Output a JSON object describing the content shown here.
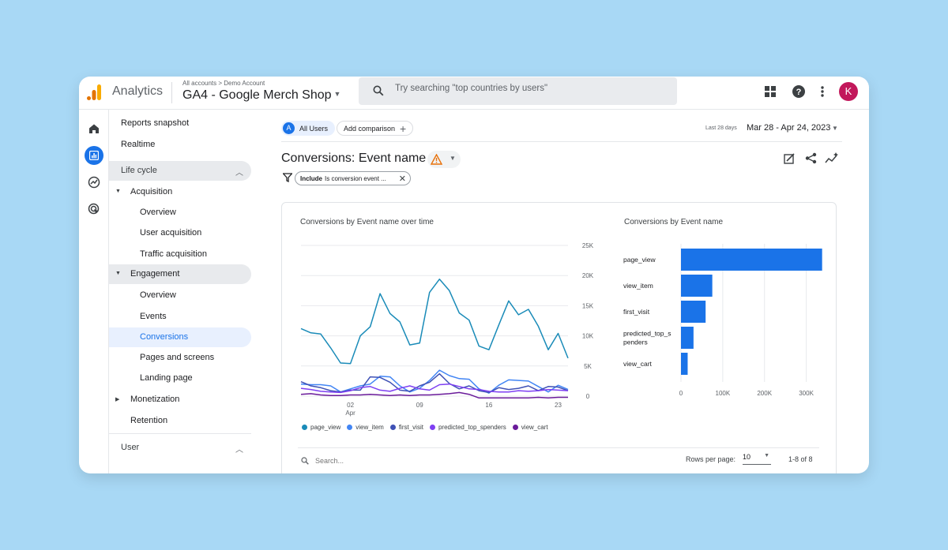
{
  "header": {
    "app_name": "Analytics",
    "breadcrumb": "All accounts > Demo Account",
    "property": "GA4 - Google Merch Shop",
    "search_placeholder": "Try searching \"top countries by users\"",
    "avatar_letter": "K",
    "brand_colors": {
      "logo_orange": "#f9ab00",
      "logo_dark": "#e37400",
      "avatar": "#c2185b"
    }
  },
  "nav": {
    "reports_snapshot": "Reports snapshot",
    "realtime": "Realtime",
    "lifecycle": "Life cycle",
    "acquisition": "Acquisition",
    "acq_overview": "Overview",
    "user_acquisition": "User acquisition",
    "traffic_acquisition": "Traffic acquisition",
    "engagement": "Engagement",
    "eng_overview": "Overview",
    "events": "Events",
    "conversions": "Conversions",
    "pages_screens": "Pages and screens",
    "landing_page": "Landing page",
    "monetization": "Monetization",
    "retention": "Retention",
    "user": "User"
  },
  "toolbar": {
    "segment_letter": "A",
    "segment": "All Users",
    "add_comparison": "Add comparison",
    "range_label": "Last 28 days",
    "range_value": "Mar 28 - Apr 24, 2023"
  },
  "page": {
    "title": "Conversions: Event name",
    "filter_bold": "Include",
    "filter_text": "Is conversion event ..."
  },
  "line_chart_title": "Conversions by Event name over time",
  "bar_chart_title": "Conversions by Event name",
  "table": {
    "search_placeholder": "Search...",
    "rows_label": "Rows per page:",
    "rows_value": "10",
    "page_info": "1-8 of 8"
  },
  "chart_data": [
    {
      "type": "line",
      "title": "Conversions by Event name over time",
      "x_ticks": [
        {
          "i": 5,
          "label": "02",
          "sub": "Apr"
        },
        {
          "i": 12,
          "label": "09"
        },
        {
          "i": 19,
          "label": "16"
        },
        {
          "i": 26,
          "label": "23"
        }
      ],
      "yticks": [
        "25K",
        "20K",
        "15K",
        "10K",
        "5K",
        "0"
      ],
      "ylim": [
        0,
        25000
      ],
      "series": [
        {
          "name": "page_view",
          "color": "#1a8bb8",
          "values": [
            11200,
            10500,
            10300,
            8000,
            5500,
            5400,
            10000,
            11500,
            17000,
            13700,
            12300,
            8500,
            8800,
            17200,
            19400,
            17500,
            13800,
            12600,
            8300,
            7700,
            11800,
            15800,
            13500,
            14400,
            11600,
            7700,
            10400,
            6300
          ]
        },
        {
          "name": "view_item",
          "color": "#4285f4",
          "values": [
            2000,
            1900,
            1900,
            1700,
            700,
            1200,
            1700,
            2000,
            3300,
            3200,
            1700,
            700,
            1300,
            2600,
            4300,
            3400,
            2900,
            2800,
            1200,
            500,
            1800,
            2700,
            2600,
            2500,
            1600,
            700,
            1800,
            1100
          ]
        },
        {
          "name": "first_visit",
          "color": "#3f51b5",
          "values": [
            2400,
            1700,
            1400,
            900,
            700,
            1000,
            1000,
            3200,
            3100,
            2300,
            1000,
            800,
            1700,
            2300,
            3700,
            2100,
            1200,
            1700,
            900,
            600,
            1400,
            1100,
            1300,
            1700,
            900,
            1600,
            1500,
            900
          ]
        },
        {
          "name": "predicted_top_spenders",
          "color": "#7e3ff2",
          "values": [
            1300,
            1100,
            800,
            700,
            600,
            900,
            1400,
            1600,
            1000,
            800,
            1300,
            1700,
            1200,
            1000,
            1900,
            2000,
            1600,
            1200,
            1100,
            800,
            700,
            700,
            900,
            800,
            900,
            1100,
            1000,
            900
          ]
        },
        {
          "name": "view_cart",
          "color": "#6a1b9a",
          "values": [
            300,
            400,
            200,
            100,
            100,
            200,
            200,
            300,
            200,
            100,
            200,
            100,
            200,
            200,
            300,
            400,
            600,
            300,
            -300,
            -300,
            -300,
            -300,
            -300,
            -300,
            -200,
            -300,
            -200,
            -200
          ]
        }
      ]
    },
    {
      "type": "bar",
      "orientation": "horizontal",
      "title": "Conversions by Event name",
      "categories": [
        "page_view",
        "view_item",
        "first_visit",
        "predicted_top_spenders",
        "view_cart"
      ],
      "category_lines": [
        [
          "page_view"
        ],
        [
          "view_item"
        ],
        [
          "first_visit"
        ],
        [
          "predicted_top_s",
          "penders"
        ],
        [
          "view_cart"
        ]
      ],
      "values": [
        338000,
        75000,
        59000,
        30000,
        16000
      ],
      "xticks": [
        {
          "v": 0,
          "label": "0"
        },
        {
          "v": 100000,
          "label": "100K"
        },
        {
          "v": 200000,
          "label": "200K"
        },
        {
          "v": 300000,
          "label": "300K"
        }
      ],
      "xlim": [
        0,
        350000
      ],
      "color": "#1a73e8"
    }
  ]
}
